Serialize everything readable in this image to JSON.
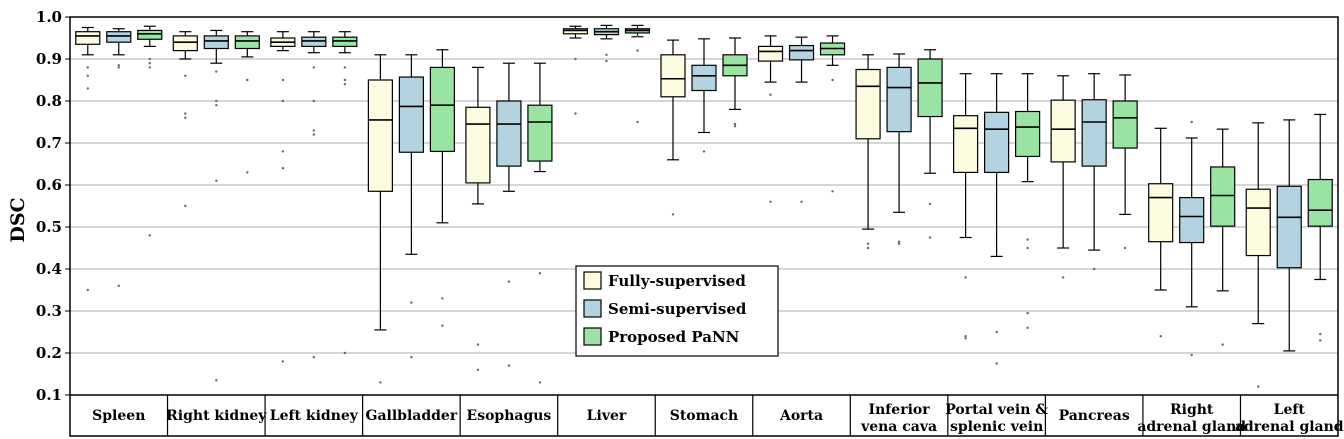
{
  "chart_data": {
    "type": "box",
    "title": "",
    "xlabel": "",
    "ylabel": "DSC",
    "ylim": [
      0.1,
      1.0
    ],
    "yticks": [
      "0.1",
      "0.2",
      "0.3",
      "0.4",
      "0.5",
      "0.6",
      "0.7",
      "0.8",
      "0.9",
      "1.0"
    ],
    "grid": "horizontal",
    "legend_position": "center",
    "categories": [
      [
        "Spleen"
      ],
      [
        "Right kidney"
      ],
      [
        "Left kidney"
      ],
      [
        "Gallbladder"
      ],
      [
        "Esophagus"
      ],
      [
        "Liver"
      ],
      [
        "Stomach"
      ],
      [
        "Aorta"
      ],
      [
        "Inferior",
        "vena cava"
      ],
      [
        "Portal vein &",
        "splenic vein"
      ],
      [
        "Pancreas"
      ],
      [
        "Right",
        "adrenal gland"
      ],
      [
        "Left",
        "adrenal gland"
      ]
    ],
    "series": [
      {
        "name": "Fully-supervised",
        "color": "#fcfadf",
        "boxes": [
          {
            "whislo": 0.91,
            "q1": 0.935,
            "med": 0.955,
            "q3": 0.965,
            "whishi": 0.975,
            "fliers": [
              0.88,
              0.86,
              0.83,
              0.35
            ]
          },
          {
            "whislo": 0.9,
            "q1": 0.92,
            "med": 0.94,
            "q3": 0.955,
            "whishi": 0.965,
            "fliers": [
              0.86,
              0.77,
              0.76,
              0.55
            ]
          },
          {
            "whislo": 0.92,
            "q1": 0.93,
            "med": 0.94,
            "q3": 0.95,
            "whishi": 0.965,
            "fliers": [
              0.85,
              0.8,
              0.68,
              0.64,
              0.18
            ]
          },
          {
            "whislo": 0.255,
            "q1": 0.585,
            "med": 0.755,
            "q3": 0.85,
            "whishi": 0.91,
            "fliers": [
              0.13
            ]
          },
          {
            "whislo": 0.555,
            "q1": 0.605,
            "med": 0.745,
            "q3": 0.785,
            "whishi": 0.88,
            "fliers": [
              0.22,
              0.16
            ]
          },
          {
            "whislo": 0.95,
            "q1": 0.96,
            "med": 0.968,
            "q3": 0.972,
            "whishi": 0.978,
            "fliers": [
              0.9,
              0.77
            ]
          },
          {
            "whislo": 0.66,
            "q1": 0.81,
            "med": 0.853,
            "q3": 0.91,
            "whishi": 0.945,
            "fliers": [
              0.53
            ]
          },
          {
            "whislo": 0.845,
            "q1": 0.895,
            "med": 0.918,
            "q3": 0.93,
            "whishi": 0.955,
            "fliers": [
              0.815,
              0.56
            ]
          },
          {
            "whislo": 0.495,
            "q1": 0.71,
            "med": 0.835,
            "q3": 0.875,
            "whishi": 0.91,
            "fliers": [
              0.46,
              0.45
            ]
          },
          {
            "whislo": 0.475,
            "q1": 0.63,
            "med": 0.735,
            "q3": 0.765,
            "whishi": 0.865,
            "fliers": [
              0.38,
              0.24,
              0.235
            ]
          },
          {
            "whislo": 0.45,
            "q1": 0.655,
            "med": 0.733,
            "q3": 0.802,
            "whishi": 0.86,
            "fliers": [
              0.38
            ]
          },
          {
            "whislo": 0.35,
            "q1": 0.465,
            "med": 0.57,
            "q3": 0.603,
            "whishi": 0.735,
            "fliers": [
              0.24
            ]
          },
          {
            "whislo": 0.27,
            "q1": 0.432,
            "med": 0.545,
            "q3": 0.59,
            "whishi": 0.748,
            "fliers": [
              0.12
            ]
          }
        ]
      },
      {
        "name": "Semi-supervised",
        "color": "#b4d3e1",
        "boxes": [
          {
            "whislo": 0.91,
            "q1": 0.94,
            "med": 0.955,
            "q3": 0.965,
            "whishi": 0.972,
            "fliers": [
              0.885,
              0.88,
              0.36
            ]
          },
          {
            "whislo": 0.89,
            "q1": 0.925,
            "med": 0.943,
            "q3": 0.955,
            "whishi": 0.968,
            "fliers": [
              0.87,
              0.8,
              0.79,
              0.61,
              0.135
            ]
          },
          {
            "whislo": 0.915,
            "q1": 0.93,
            "med": 0.943,
            "q3": 0.952,
            "whishi": 0.965,
            "fliers": [
              0.88,
              0.8,
              0.73,
              0.72,
              0.19
            ]
          },
          {
            "whislo": 0.435,
            "q1": 0.678,
            "med": 0.787,
            "q3": 0.857,
            "whishi": 0.91,
            "fliers": [
              0.32,
              0.19
            ]
          },
          {
            "whislo": 0.585,
            "q1": 0.645,
            "med": 0.745,
            "q3": 0.8,
            "whishi": 0.89,
            "fliers": [
              0.37,
              0.17
            ]
          },
          {
            "whislo": 0.948,
            "q1": 0.958,
            "med": 0.965,
            "q3": 0.972,
            "whishi": 0.98,
            "fliers": [
              0.91,
              0.895
            ]
          },
          {
            "whislo": 0.725,
            "q1": 0.825,
            "med": 0.86,
            "q3": 0.885,
            "whishi": 0.948,
            "fliers": [
              0.68
            ]
          },
          {
            "whislo": 0.845,
            "q1": 0.898,
            "med": 0.92,
            "q3": 0.932,
            "whishi": 0.952,
            "fliers": [
              0.56
            ]
          },
          {
            "whislo": 0.535,
            "q1": 0.727,
            "med": 0.832,
            "q3": 0.88,
            "whishi": 0.912,
            "fliers": [
              0.465,
              0.46
            ]
          },
          {
            "whislo": 0.43,
            "q1": 0.63,
            "med": 0.733,
            "q3": 0.773,
            "whishi": 0.865,
            "fliers": [
              0.25,
              0.175
            ]
          },
          {
            "whislo": 0.445,
            "q1": 0.645,
            "med": 0.75,
            "q3": 0.803,
            "whishi": 0.865,
            "fliers": [
              0.4
            ]
          },
          {
            "whislo": 0.31,
            "q1": 0.463,
            "med": 0.525,
            "q3": 0.57,
            "whishi": 0.712,
            "fliers": [
              0.75,
              0.195
            ]
          },
          {
            "whislo": 0.205,
            "q1": 0.403,
            "med": 0.523,
            "q3": 0.597,
            "whishi": 0.755,
            "fliers": []
          }
        ]
      },
      {
        "name": "Proposed PaNN",
        "color": "#9be3a2",
        "boxes": [
          {
            "whislo": 0.93,
            "q1": 0.947,
            "med": 0.96,
            "q3": 0.968,
            "whishi": 0.978,
            "fliers": [
              0.9,
              0.89,
              0.88,
              0.48
            ]
          },
          {
            "whislo": 0.905,
            "q1": 0.925,
            "med": 0.943,
            "q3": 0.955,
            "whishi": 0.965,
            "fliers": [
              0.85,
              0.63
            ]
          },
          {
            "whislo": 0.915,
            "q1": 0.93,
            "med": 0.943,
            "q3": 0.952,
            "whishi": 0.965,
            "fliers": [
              0.88,
              0.85,
              0.84,
              0.2
            ]
          },
          {
            "whislo": 0.51,
            "q1": 0.68,
            "med": 0.79,
            "q3": 0.88,
            "whishi": 0.922,
            "fliers": [
              0.33,
              0.265
            ]
          },
          {
            "whislo": 0.632,
            "q1": 0.657,
            "med": 0.75,
            "q3": 0.79,
            "whishi": 0.89,
            "fliers": [
              0.39,
              0.13
            ]
          },
          {
            "whislo": 0.953,
            "q1": 0.962,
            "med": 0.968,
            "q3": 0.972,
            "whishi": 0.98,
            "fliers": [
              0.955,
              0.92,
              0.75
            ]
          },
          {
            "whislo": 0.78,
            "q1": 0.86,
            "med": 0.885,
            "q3": 0.91,
            "whishi": 0.95,
            "fliers": [
              0.745,
              0.74
            ]
          },
          {
            "whislo": 0.885,
            "q1": 0.91,
            "med": 0.925,
            "q3": 0.938,
            "whishi": 0.955,
            "fliers": [
              0.85,
              0.585
            ]
          },
          {
            "whislo": 0.628,
            "q1": 0.763,
            "med": 0.843,
            "q3": 0.9,
            "whishi": 0.922,
            "fliers": [
              0.555,
              0.475
            ]
          },
          {
            "whislo": 0.608,
            "q1": 0.668,
            "med": 0.738,
            "q3": 0.775,
            "whishi": 0.865,
            "fliers": [
              0.47,
              0.45,
              0.295,
              0.26
            ]
          },
          {
            "whislo": 0.53,
            "q1": 0.688,
            "med": 0.76,
            "q3": 0.8,
            "whishi": 0.862,
            "fliers": [
              0.45
            ]
          },
          {
            "whislo": 0.348,
            "q1": 0.502,
            "med": 0.575,
            "q3": 0.643,
            "whishi": 0.733,
            "fliers": [
              0.22
            ]
          },
          {
            "whislo": 0.375,
            "q1": 0.502,
            "med": 0.54,
            "q3": 0.613,
            "whishi": 0.768,
            "fliers": [
              0.245,
              0.23
            ]
          }
        ]
      }
    ]
  }
}
